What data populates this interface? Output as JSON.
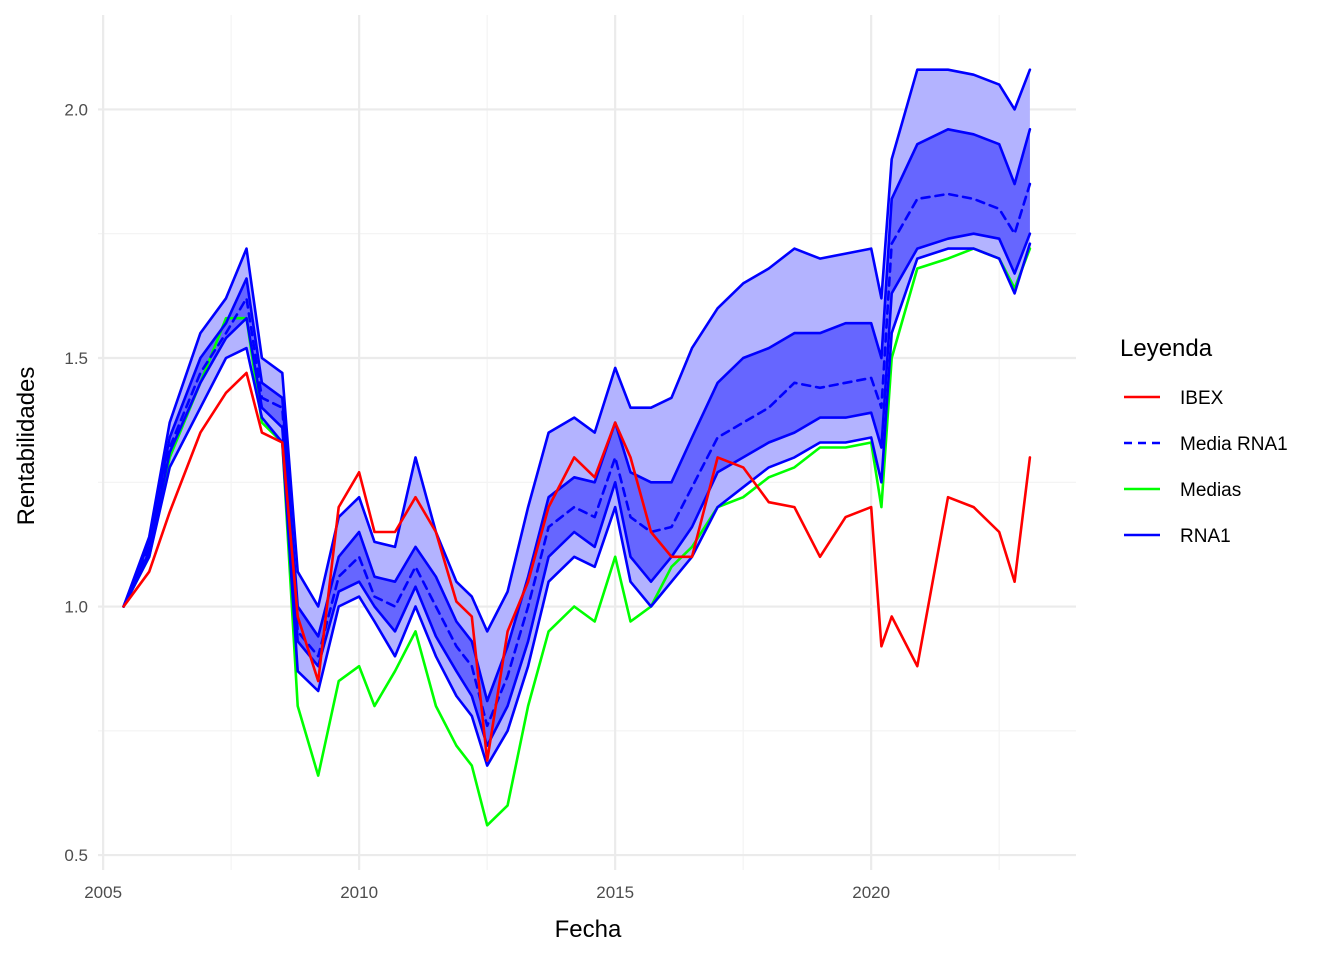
{
  "chart_data": {
    "type": "line",
    "title": "",
    "xlabel": "Fecha",
    "ylabel": "Rentabilidades",
    "xlim": [
      2004.9,
      2024.0
    ],
    "ylim": [
      0.47,
      2.19
    ],
    "x_ticks": [
      2005,
      2010,
      2015,
      2020
    ],
    "x_tick_labels": [
      "2005",
      "2010",
      "2015",
      "2020"
    ],
    "y_ticks": [
      0.5,
      1.0,
      1.5,
      2.0
    ],
    "y_tick_labels": [
      "0.5",
      "1.0",
      "1.5",
      "2.0"
    ],
    "grid": true,
    "legend": {
      "title": "Leyenda",
      "position": "right",
      "entries": [
        {
          "label": "IBEX",
          "color": "#ff0000",
          "style": "solid"
        },
        {
          "label": "Media RNA1",
          "color": "#0000ff",
          "style": "dashed"
        },
        {
          "label": "Medias",
          "color": "#00ff00",
          "style": "solid"
        },
        {
          "label": "RNA1",
          "color": "#0000ff",
          "style": "solid"
        }
      ]
    },
    "colors": {
      "ibex": "#ff0000",
      "medias": "#00ff00",
      "rna": "#0000ff",
      "band_outer": "#b3b3ff",
      "band_inner": "#6666ff"
    },
    "x": [
      2005.4,
      2005.9,
      2006.3,
      2006.9,
      2007.4,
      2007.8,
      2008.1,
      2008.5,
      2008.8,
      2009.2,
      2009.6,
      2010.0,
      2010.3,
      2010.7,
      2011.1,
      2011.5,
      2011.9,
      2012.2,
      2012.5,
      2012.9,
      2013.3,
      2013.7,
      2014.2,
      2014.6,
      2015.0,
      2015.3,
      2015.7,
      2016.1,
      2016.5,
      2017.0,
      2017.5,
      2018.0,
      2018.5,
      2019.0,
      2019.5,
      2020.0,
      2020.2,
      2020.4,
      2020.9,
      2021.5,
      2022.0,
      2022.5,
      2022.8,
      2023.1
    ],
    "series": [
      {
        "name": "IBEX",
        "style": "solid",
        "color": "#ff0000",
        "values": [
          1.0,
          1.07,
          1.19,
          1.35,
          1.43,
          1.47,
          1.35,
          1.33,
          0.98,
          0.85,
          1.2,
          1.27,
          1.15,
          1.15,
          1.22,
          1.15,
          1.01,
          0.98,
          0.69,
          0.95,
          1.05,
          1.2,
          1.3,
          1.26,
          1.37,
          1.3,
          1.15,
          1.1,
          1.1,
          1.3,
          1.28,
          1.21,
          1.2,
          1.1,
          1.18,
          1.2,
          0.92,
          0.98,
          0.88,
          1.22,
          1.2,
          1.15,
          1.05,
          1.3
        ]
      },
      {
        "name": "Medias",
        "style": "solid",
        "color": "#00ff00",
        "values": [
          1.0,
          1.1,
          1.3,
          1.45,
          1.58,
          1.58,
          1.37,
          1.33,
          0.8,
          0.66,
          0.85,
          0.88,
          0.8,
          0.87,
          0.95,
          0.8,
          0.72,
          0.68,
          0.56,
          0.6,
          0.8,
          0.95,
          1.0,
          0.97,
          1.1,
          0.97,
          1.0,
          1.08,
          1.12,
          1.2,
          1.22,
          1.26,
          1.28,
          1.32,
          1.32,
          1.33,
          1.2,
          1.5,
          1.68,
          1.7,
          1.72,
          1.7,
          1.64,
          1.72
        ]
      },
      {
        "name": "RNA1 inferior",
        "style": "solid",
        "color": "#0000ff",
        "values": [
          1.0,
          1.1,
          1.28,
          1.4,
          1.5,
          1.52,
          1.38,
          1.33,
          0.87,
          0.83,
          1.0,
          1.02,
          0.97,
          0.9,
          1.0,
          0.9,
          0.82,
          0.78,
          0.68,
          0.75,
          0.88,
          1.05,
          1.1,
          1.08,
          1.2,
          1.05,
          1.0,
          1.05,
          1.1,
          1.2,
          1.24,
          1.28,
          1.3,
          1.33,
          1.33,
          1.34,
          1.25,
          1.55,
          1.7,
          1.72,
          1.72,
          1.7,
          1.63,
          1.73
        ]
      },
      {
        "name": "RNA1 inferior 2",
        "style": "solid",
        "color": "#0000ff",
        "values": [
          1.0,
          1.11,
          1.31,
          1.45,
          1.54,
          1.58,
          1.4,
          1.36,
          0.93,
          0.88,
          1.03,
          1.05,
          1.0,
          0.95,
          1.04,
          0.94,
          0.87,
          0.82,
          0.72,
          0.8,
          0.93,
          1.1,
          1.15,
          1.12,
          1.25,
          1.1,
          1.05,
          1.1,
          1.16,
          1.27,
          1.3,
          1.33,
          1.35,
          1.38,
          1.38,
          1.39,
          1.32,
          1.63,
          1.72,
          1.74,
          1.75,
          1.74,
          1.67,
          1.75
        ]
      },
      {
        "name": "Media RNA1",
        "style": "dashed",
        "color": "#0000ff",
        "values": [
          1.0,
          1.12,
          1.32,
          1.47,
          1.55,
          1.62,
          1.42,
          1.4,
          0.95,
          0.9,
          1.06,
          1.1,
          1.02,
          1.0,
          1.08,
          1.0,
          0.92,
          0.88,
          0.76,
          0.86,
          1.0,
          1.16,
          1.2,
          1.18,
          1.3,
          1.18,
          1.15,
          1.16,
          1.24,
          1.34,
          1.37,
          1.4,
          1.45,
          1.44,
          1.45,
          1.46,
          1.4,
          1.73,
          1.82,
          1.83,
          1.82,
          1.8,
          1.75,
          1.85
        ]
      },
      {
        "name": "RNA1 superior",
        "style": "solid",
        "color": "#0000ff",
        "values": [
          1.0,
          1.13,
          1.34,
          1.5,
          1.57,
          1.66,
          1.45,
          1.42,
          1.0,
          0.94,
          1.1,
          1.15,
          1.06,
          1.05,
          1.12,
          1.06,
          0.97,
          0.93,
          0.81,
          0.92,
          1.06,
          1.22,
          1.26,
          1.25,
          1.37,
          1.27,
          1.25,
          1.25,
          1.34,
          1.45,
          1.5,
          1.52,
          1.55,
          1.55,
          1.57,
          1.57,
          1.5,
          1.82,
          1.93,
          1.96,
          1.95,
          1.93,
          1.85,
          1.96
        ]
      },
      {
        "name": "RNA1 superior 2",
        "style": "solid",
        "color": "#0000ff",
        "values": [
          1.0,
          1.14,
          1.37,
          1.55,
          1.62,
          1.72,
          1.5,
          1.47,
          1.07,
          1.0,
          1.18,
          1.22,
          1.13,
          1.12,
          1.3,
          1.15,
          1.05,
          1.02,
          0.95,
          1.03,
          1.2,
          1.35,
          1.38,
          1.35,
          1.48,
          1.4,
          1.4,
          1.42,
          1.52,
          1.6,
          1.65,
          1.68,
          1.72,
          1.7,
          1.71,
          1.72,
          1.62,
          1.9,
          2.08,
          2.08,
          2.07,
          2.05,
          2.0,
          2.08
        ]
      }
    ]
  }
}
